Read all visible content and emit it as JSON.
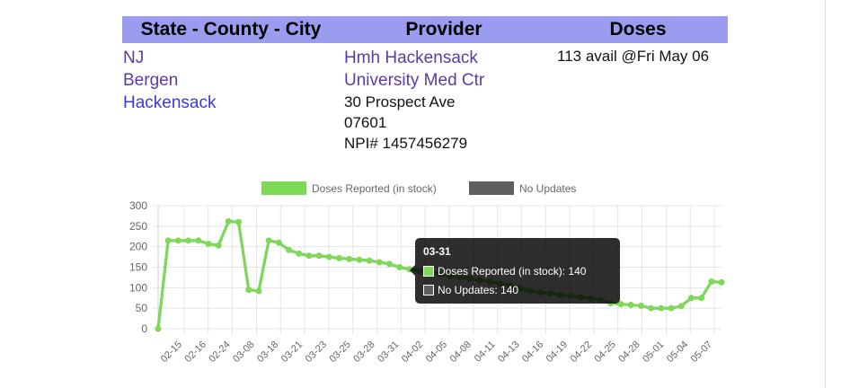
{
  "table": {
    "headers": [
      "State - County - City",
      "Provider",
      "Doses"
    ],
    "state": "NJ",
    "county": "Bergen",
    "city": "Hackensack",
    "provider_name_line1": "Hmh Hackensack",
    "provider_name_line2": "University Med Ctr",
    "address": "30 Prospect Ave",
    "zip": "07601",
    "npi": "NPI# 1457456279",
    "doses": "113 avail @Fri May 06"
  },
  "colors": {
    "header_bg": "#9b9bef",
    "green": "#7ed957",
    "gray": "#5f5f5f"
  },
  "tooltip": {
    "title": "03-31",
    "rows": [
      "Doses Reported (in stock): 140",
      "No Updates: 140"
    ]
  },
  "chart_data": {
    "type": "line",
    "legend_position": "top",
    "grid": true,
    "ylim": [
      0,
      300
    ],
    "yticks": [
      0,
      50,
      100,
      150,
      200,
      250,
      300
    ],
    "x_tick_labels": [
      "02-15",
      "02-16",
      "02-24",
      "03-08",
      "03-18",
      "03-21",
      "03-23",
      "03-25",
      "03-28",
      "03-31",
      "04-02",
      "04-05",
      "04-08",
      "04-11",
      "04-13",
      "04-16",
      "04-19",
      "04-22",
      "04-25",
      "04-28",
      "05-01",
      "05-04",
      "05-07"
    ],
    "series": [
      {
        "name": "Doses Reported (in stock)",
        "color": "#7ed957",
        "values": [
          0,
          215,
          215,
          215,
          215,
          207,
          203,
          262,
          260,
          95,
          92,
          215,
          210,
          192,
          183,
          178,
          178,
          175,
          172,
          170,
          168,
          166,
          162,
          158,
          150,
          145,
          140,
          140,
          133,
          128,
          125,
          122,
          118,
          115,
          110,
          105,
          98,
          92,
          88,
          86,
          82,
          80,
          77,
          74,
          70,
          62,
          60,
          58,
          56,
          50,
          50,
          50,
          55,
          75,
          75,
          115,
          113
        ]
      },
      {
        "name": "No Updates",
        "color": "#5f5f5f",
        "values": [
          0,
          215,
          215,
          215,
          215,
          207,
          203,
          262,
          260,
          95,
          92,
          215,
          210,
          192,
          183,
          178,
          178,
          175,
          172,
          170,
          168,
          166,
          162,
          158,
          150,
          145,
          140,
          140,
          133,
          128,
          125,
          122,
          118,
          115,
          110,
          105,
          98,
          92,
          88,
          86,
          82,
          80,
          77,
          74,
          70,
          62,
          60,
          58,
          56,
          50,
          50,
          50,
          55,
          75,
          75,
          115,
          113
        ]
      }
    ]
  }
}
